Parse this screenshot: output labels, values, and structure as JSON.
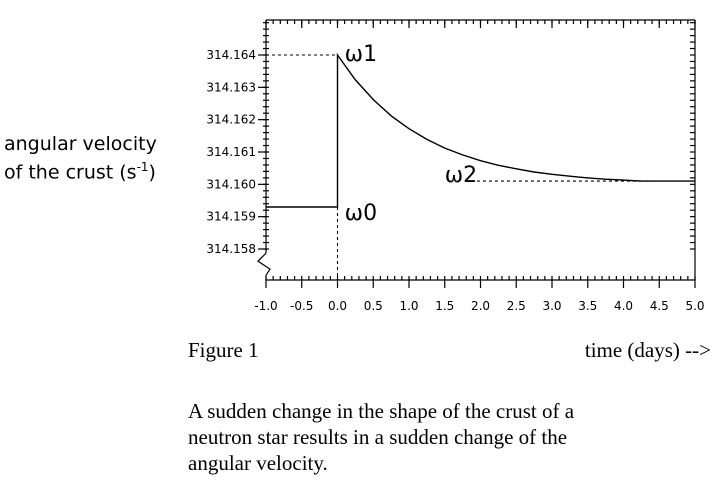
{
  "chart_data": {
    "type": "line",
    "ylabel_line1": "angular velocity",
    "ylabel_line2": "of the crust (s",
    "ylabel_exp": "-1",
    "ylabel_close": ")",
    "xlabel": "time (days) -->",
    "figure_label": "Figure 1",
    "xlim": [
      -1.0,
      5.0
    ],
    "ylim": [
      314.157,
      314.165
    ],
    "x_ticks": [
      -1.0,
      -0.5,
      0.0,
      0.5,
      1.0,
      1.5,
      2.0,
      2.5,
      3.0,
      3.5,
      4.0,
      4.5,
      5.0
    ],
    "x_tick_labels": [
      "-1.0",
      "-0.5",
      "0.0",
      "0.5",
      "1.0",
      "1.5",
      "2.0",
      "2.5",
      "3.0",
      "3.5",
      "4.0",
      "4.5",
      "5.0"
    ],
    "y_ticks": [
      314.158,
      314.159,
      314.16,
      314.161,
      314.162,
      314.163,
      314.164
    ],
    "y_tick_labels": [
      "314.158",
      "314.159",
      "314.160",
      "314.161",
      "314.162",
      "314.163",
      "314.164"
    ],
    "series": [
      {
        "points": [
          [
            -1.0,
            314.1593
          ],
          [
            0.0,
            314.1593
          ],
          [
            0.0,
            314.164
          ],
          [
            0.25,
            314.16323
          ],
          [
            0.5,
            314.16262
          ],
          [
            0.75,
            314.16212
          ],
          [
            1.0,
            314.16172
          ],
          [
            1.25,
            314.16139
          ],
          [
            1.5,
            314.16112
          ],
          [
            1.75,
            314.16091
          ],
          [
            2.0,
            314.16073
          ],
          [
            2.25,
            314.16059
          ],
          [
            2.5,
            314.16048
          ],
          [
            2.75,
            314.16038
          ],
          [
            3.0,
            314.16031
          ],
          [
            3.25,
            314.16025
          ],
          [
            3.5,
            314.1602
          ],
          [
            3.75,
            314.16016
          ],
          [
            4.0,
            314.16013
          ],
          [
            4.25,
            314.1601
          ],
          [
            4.5,
            314.1601
          ],
          [
            5.0,
            314.1601
          ]
        ]
      }
    ],
    "annotations": [
      {
        "label": "ω1",
        "value": 314.164
      },
      {
        "label": "ω0",
        "value": 314.1593
      },
      {
        "label": "ω2",
        "value": 314.1601
      }
    ],
    "axis_break": "y-axis break near 314.1575"
  },
  "caption": {
    "line1": "A sudden change in the shape of the crust of a",
    "line2": "neutron star results in a sudden change of the",
    "line3": "angular velocity."
  }
}
